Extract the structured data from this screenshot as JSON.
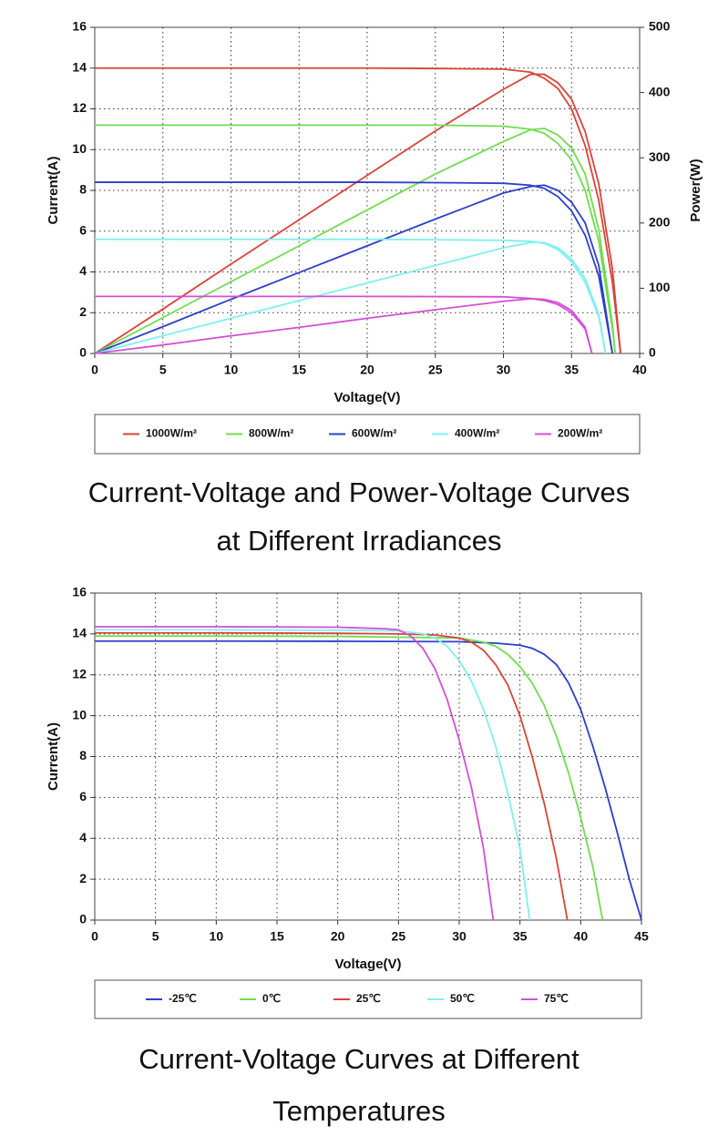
{
  "chart_data": [
    {
      "type": "line",
      "title": [
        "Current-Voltage and Power-Voltage Curves",
        "at Different Irradiances"
      ],
      "x_label": "Voltage(V)",
      "y_label": "Current(A)",
      "y2_label": "Power(W)",
      "xlim": [
        0,
        40
      ],
      "xticks": [
        0,
        5,
        10,
        15,
        20,
        25,
        30,
        35,
        40
      ],
      "ylim": [
        0,
        16
      ],
      "yticks": [
        0,
        2,
        4,
        6,
        8,
        10,
        12,
        14,
        16
      ],
      "y2lim": [
        0,
        500
      ],
      "y2ticks": [
        0,
        100,
        200,
        300,
        400,
        500
      ],
      "grid": true,
      "series": [
        {
          "name": "1000W/m²",
          "color": "#d9443a",
          "x": [
            0,
            5,
            10,
            15,
            20,
            25,
            30,
            32,
            33,
            34,
            35,
            36,
            37,
            38,
            38.6
          ],
          "values": [
            14,
            14,
            14,
            14,
            14,
            13.98,
            13.95,
            13.8,
            13.5,
            13.0,
            12.0,
            10.2,
            7.5,
            3.5,
            0
          ],
          "power": [
            0,
            68,
            137,
            205,
            273,
            341,
            405,
            428,
            428,
            415,
            390,
            340,
            260,
            130,
            0
          ]
        },
        {
          "name": "800W/m²",
          "color": "#6fdd4e",
          "x": [
            0,
            5,
            10,
            15,
            20,
            25,
            30,
            32,
            33,
            34,
            35,
            36,
            37,
            38,
            38.2
          ],
          "values": [
            11.2,
            11.2,
            11.2,
            11.2,
            11.2,
            11.2,
            11.15,
            11.0,
            10.8,
            10.3,
            9.5,
            8.0,
            5.5,
            1.2,
            0
          ],
          "power": [
            0,
            55,
            110,
            165,
            220,
            275,
            325,
            343,
            345,
            335,
            315,
            275,
            190,
            45,
            0
          ]
        },
        {
          "name": "600W/m²",
          "color": "#2b3fc9",
          "x": [
            0,
            5,
            10,
            15,
            20,
            25,
            30,
            32,
            33,
            34,
            35,
            36,
            37,
            38
          ],
          "values": [
            8.4,
            8.4,
            8.4,
            8.4,
            8.4,
            8.38,
            8.35,
            8.25,
            8.1,
            7.7,
            7.0,
            5.8,
            3.8,
            0
          ],
          "power": [
            0,
            41,
            83,
            124,
            165,
            206,
            246,
            256,
            258,
            250,
            232,
            200,
            135,
            0
          ]
        },
        {
          "name": "400W/m²",
          "color": "#7ff0f0",
          "x": [
            0,
            5,
            10,
            15,
            20,
            25,
            30,
            32,
            33,
            34,
            35,
            36,
            37,
            37.5
          ],
          "values": [
            5.6,
            5.6,
            5.6,
            5.6,
            5.6,
            5.58,
            5.55,
            5.5,
            5.4,
            5.1,
            4.5,
            3.5,
            1.8,
            0
          ],
          "power": [
            0,
            27,
            54,
            81,
            108,
            135,
            162,
            170,
            170,
            162,
            145,
            115,
            60,
            0
          ]
        },
        {
          "name": "200W/m²",
          "color": "#d54fd6",
          "x": [
            0,
            5,
            10,
            15,
            20,
            25,
            30,
            32,
            33,
            34,
            35,
            36,
            36.5
          ],
          "values": [
            2.8,
            2.8,
            2.8,
            2.8,
            2.8,
            2.79,
            2.78,
            2.7,
            2.6,
            2.4,
            2.0,
            1.2,
            0
          ],
          "power": [
            0,
            13,
            27,
            40,
            54,
            67,
            80,
            84,
            83,
            78,
            66,
            40,
            0
          ]
        }
      ]
    },
    {
      "type": "line",
      "title": [
        "Current-Voltage Curves at Different",
        "Temperatures"
      ],
      "x_label": "Voltage(V)",
      "y_label": "Current(A)",
      "xlim": [
        0,
        45
      ],
      "xticks": [
        0,
        5,
        10,
        15,
        20,
        25,
        30,
        35,
        40,
        45
      ],
      "ylim": [
        0,
        16
      ],
      "yticks": [
        0,
        2,
        4,
        6,
        8,
        10,
        12,
        14,
        16
      ],
      "grid": true,
      "series": [
        {
          "name": "-25℃",
          "color": "#2b3fc9",
          "x": [
            0,
            10,
            20,
            30,
            33,
            35,
            36,
            37,
            38,
            39,
            40,
            41,
            42,
            43,
            44,
            45
          ],
          "values": [
            13.65,
            13.65,
            13.64,
            13.62,
            13.55,
            13.45,
            13.3,
            13.0,
            12.5,
            11.6,
            10.3,
            8.5,
            6.5,
            4.3,
            2.0,
            0
          ]
        },
        {
          "name": "0℃",
          "color": "#6fdd4e",
          "x": [
            0,
            10,
            20,
            30,
            32,
            33,
            34,
            35,
            36,
            37,
            38,
            39,
            40,
            41,
            41.8
          ],
          "values": [
            13.9,
            13.9,
            13.88,
            13.8,
            13.6,
            13.4,
            13.0,
            12.4,
            11.6,
            10.5,
            9.0,
            7.2,
            5.0,
            2.6,
            0
          ]
        },
        {
          "name": "25℃",
          "color": "#d9443a",
          "x": [
            0,
            10,
            20,
            25,
            28,
            30,
            31,
            32,
            33,
            34,
            35,
            36,
            37,
            38,
            38.9
          ],
          "values": [
            14.05,
            14.05,
            14.03,
            14.0,
            13.95,
            13.8,
            13.6,
            13.2,
            12.5,
            11.5,
            10.0,
            8.0,
            5.7,
            3.0,
            0
          ]
        },
        {
          "name": "50℃",
          "color": "#7ff0f0",
          "x": [
            0,
            10,
            20,
            25,
            27,
            28,
            29,
            30,
            31,
            32,
            33,
            34,
            35,
            35.8
          ],
          "values": [
            14.2,
            14.2,
            14.18,
            14.15,
            14.0,
            13.8,
            13.4,
            12.7,
            11.7,
            10.3,
            8.5,
            6.2,
            3.5,
            0
          ]
        },
        {
          "name": "75℃",
          "color": "#d54fd6",
          "x": [
            0,
            10,
            20,
            24,
            25,
            26,
            27,
            28,
            29,
            30,
            31,
            32,
            32.8
          ],
          "values": [
            14.35,
            14.35,
            14.33,
            14.25,
            14.2,
            13.9,
            13.3,
            12.3,
            10.8,
            8.8,
            6.5,
            3.5,
            0
          ]
        }
      ]
    }
  ]
}
